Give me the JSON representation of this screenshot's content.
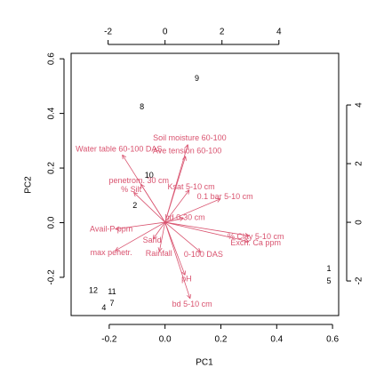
{
  "chart_data": {
    "type": "biplot",
    "xlabel": "PC1",
    "ylabel": "PC2",
    "xlim": [
      -0.3365,
      0.622
    ],
    "ylim": [
      -0.34,
      0.62
    ],
    "xticks": [
      -0.2,
      {
        "value": 0,
        "label": "0.0"
      },
      0.2,
      0.4,
      0.6
    ],
    "yticks": [
      -0.2,
      {
        "value": 0,
        "label": "0.0"
      },
      0.2,
      0.4,
      0.6
    ],
    "x2lim": [
      -3.3,
      6.1
    ],
    "y2lim": [
      -3.18,
      5.76
    ],
    "x2ticks": [
      -2,
      0,
      2,
      4
    ],
    "y2ticks": [
      -2,
      0,
      2,
      4
    ],
    "points": {
      "color": "#000000",
      "labels": [
        "9",
        "8",
        "10",
        "2",
        "1",
        "5",
        "12",
        "11",
        "4",
        "7"
      ],
      "x": [
        0.114,
        -0.083,
        -0.057,
        -0.108,
        0.587,
        0.587,
        -0.257,
        -0.19,
        -0.219,
        -0.19
      ],
      "y": [
        0.527,
        0.423,
        0.172,
        0.062,
        -0.169,
        -0.215,
        -0.25,
        -0.254,
        -0.312,
        -0.296
      ]
    },
    "arrows": {
      "color": "#d9536f",
      "axis": "y2",
      "names": [
        "Soil moisture 60-100",
        "Ave tension 60-100",
        "Water table 60-100 DAS",
        "penetrom. 30 cm",
        "% Silt",
        "Ksat 5-10 cm",
        "0.1 bar 5-10 cm",
        "bd 0-30 cm",
        "Avail-P ppm",
        "Sand",
        "% Clay 5-10 cm",
        "Exch. Ca ppm",
        "max penetr.",
        "Rainfall",
        "0-100 DAS",
        "pH",
        "bd 5-10 cm"
      ],
      "x": [
        0.8,
        0.72,
        -1.5,
        -0.85,
        -1.1,
        0.85,
        1.95,
        0.65,
        -1.75,
        -0.42,
        2.95,
        2.95,
        -1.75,
        -0.2,
        1.25,
        0.7,
        0.88
      ],
      "y": [
        2.65,
        2.25,
        2.3,
        1.3,
        1.02,
        1.1,
        0.8,
        0.14,
        -0.23,
        -0.57,
        -0.46,
        -0.66,
        -0.97,
        -1.0,
        -1.02,
        -1.8,
        -2.6
      ]
    }
  }
}
